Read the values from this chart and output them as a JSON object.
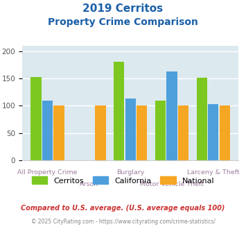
{
  "title_line1": "2019 Cerritos",
  "title_line2": "Property Crime Comparison",
  "categories": [
    "All Property Crime",
    "Arson",
    "Burglary",
    "Motor Vehicle Theft",
    "Larceny & Theft"
  ],
  "series": {
    "Cerritos": [
      153,
      0,
      181,
      110,
      152
    ],
    "California": [
      110,
      0,
      113,
      163,
      103
    ],
    "National": [
      100,
      100,
      100,
      100,
      100
    ]
  },
  "colors": {
    "Cerritos": "#7dc820",
    "California": "#4d9fdb",
    "National": "#f5a623"
  },
  "ylim": [
    0,
    210
  ],
  "yticks": [
    0,
    50,
    100,
    150,
    200
  ],
  "tick_label_color": "#9e7e9e",
  "title_color": "#1a5fa8",
  "legend_labels": [
    "Cerritos",
    "California",
    "National"
  ],
  "footer_text1": "Compared to U.S. average. (U.S. average equals 100)",
  "footer_text2": "© 2025 CityRating.com - https://www.cityrating.com/crime-statistics/",
  "footer_color1": "#cc3333",
  "footer_color2": "#888888",
  "plot_bg": "#dce9ef"
}
